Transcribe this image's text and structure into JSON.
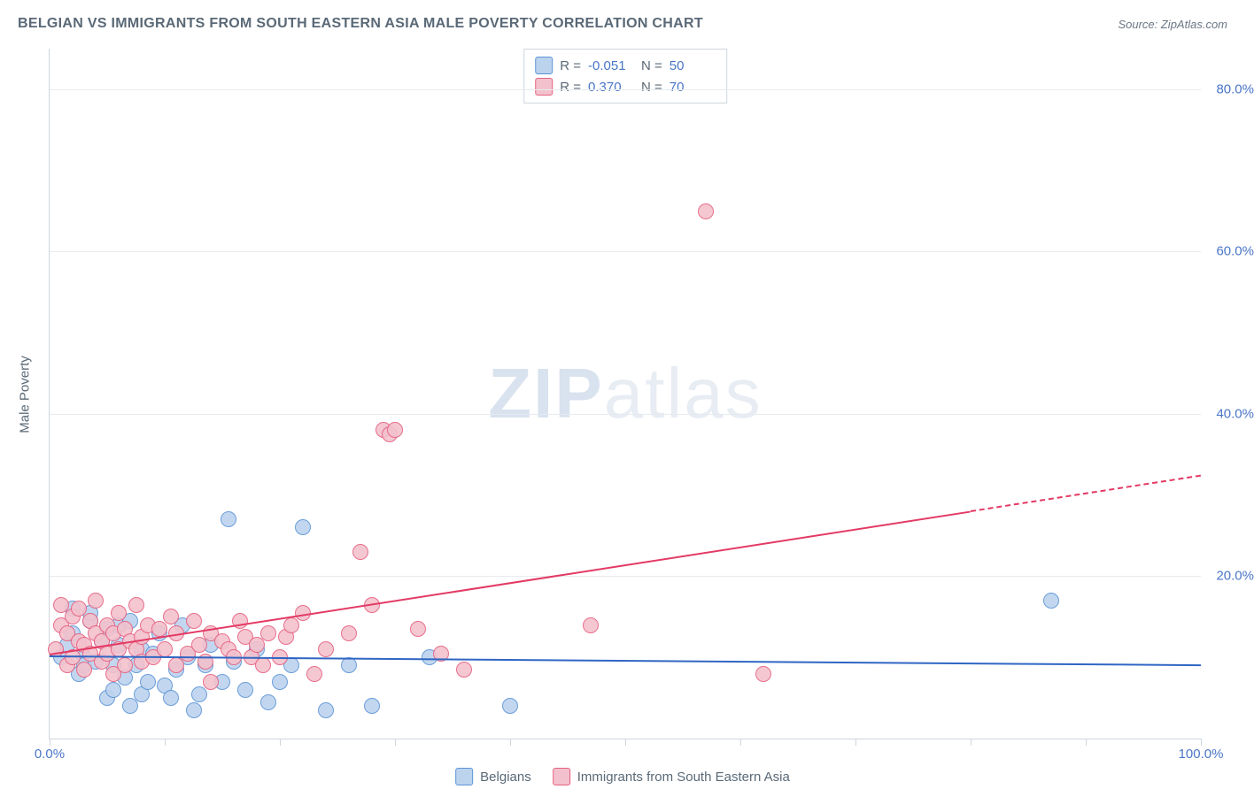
{
  "title": "BELGIAN VS IMMIGRANTS FROM SOUTH EASTERN ASIA MALE POVERTY CORRELATION CHART",
  "source_label": "Source: ZipAtlas.com",
  "y_axis_title": "Male Poverty",
  "watermark": {
    "part1": "ZIP",
    "part2": "atlas"
  },
  "chart": {
    "type": "scatter",
    "xlim": [
      0,
      100
    ],
    "ylim": [
      0,
      85
    ],
    "x_ticks": [
      0,
      10,
      20,
      30,
      40,
      50,
      60,
      70,
      80,
      90,
      100
    ],
    "x_tick_labels": {
      "0": "0.0%",
      "100": "100.0%"
    },
    "y_ticks": [
      20,
      40,
      60,
      80
    ],
    "y_tick_labels": {
      "20": "20.0%",
      "40": "40.0%",
      "60": "60.0%",
      "80": "80.0%"
    },
    "background_color": "#ffffff",
    "grid_color": "#e7ebef",
    "axis_color": "#cfd6dd",
    "tick_label_color": "#4a76c7",
    "axis_title_color": "#5a6977",
    "point_radius": 8,
    "point_stroke_width": 1.5,
    "point_fill_opacity": 0.35,
    "series": [
      {
        "key": "belgians",
        "label": "Belgians",
        "stroke": "#5b93d6",
        "fill": "#bcd3ee",
        "trend_color": "#2f66c4",
        "trend": {
          "x1": 0,
          "y1": 10.2,
          "x2": 100,
          "y2": 9.1,
          "dash_from_x": 100
        },
        "R_label": "R =",
        "R_value": "-0.051",
        "N_label": "N =",
        "N_value": "50",
        "points": [
          [
            1,
            10
          ],
          [
            1.5,
            11.5
          ],
          [
            2,
            16
          ],
          [
            2,
            13
          ],
          [
            2.5,
            8
          ],
          [
            3,
            10
          ],
          [
            3,
            9
          ],
          [
            3.5,
            14.5
          ],
          [
            3.5,
            15.5
          ],
          [
            4,
            9.5
          ],
          [
            4.5,
            12
          ],
          [
            5,
            13.5
          ],
          [
            5,
            5
          ],
          [
            5.5,
            9
          ],
          [
            5.5,
            6
          ],
          [
            6,
            14
          ],
          [
            6,
            11.5
          ],
          [
            6.5,
            7.5
          ],
          [
            7,
            14.5
          ],
          [
            7,
            4
          ],
          [
            7.5,
            9
          ],
          [
            8,
            11
          ],
          [
            8,
            5.5
          ],
          [
            8.5,
            7
          ],
          [
            9,
            10.5
          ],
          [
            9.5,
            13
          ],
          [
            10,
            6.5
          ],
          [
            10.5,
            5
          ],
          [
            11,
            8.5
          ],
          [
            11.5,
            14
          ],
          [
            12,
            10
          ],
          [
            12.5,
            3.5
          ],
          [
            13,
            5.5
          ],
          [
            13.5,
            9
          ],
          [
            14,
            11.5
          ],
          [
            15,
            7
          ],
          [
            15.5,
            27
          ],
          [
            16,
            9.5
          ],
          [
            17,
            6
          ],
          [
            18,
            11
          ],
          [
            19,
            4.5
          ],
          [
            20,
            7
          ],
          [
            21,
            9
          ],
          [
            22,
            26
          ],
          [
            24,
            3.5
          ],
          [
            26,
            9
          ],
          [
            28,
            4
          ],
          [
            33,
            10
          ],
          [
            40,
            4
          ],
          [
            87,
            17
          ]
        ]
      },
      {
        "key": "immigrants",
        "label": "Immigrants from South Eastern Asia",
        "stroke": "#e6607f",
        "fill": "#f3c1cd",
        "trend_color": "#e33a64",
        "trend": {
          "x1": 0,
          "y1": 10.5,
          "x2": 100,
          "y2": 32.5,
          "dash_from_x": 80
        },
        "R_label": "R =",
        "R_value": "0.370",
        "N_label": "N =",
        "N_value": "70",
        "points": [
          [
            0.5,
            11
          ],
          [
            1,
            14
          ],
          [
            1,
            16.5
          ],
          [
            1.5,
            9
          ],
          [
            1.5,
            13
          ],
          [
            2,
            10
          ],
          [
            2,
            15
          ],
          [
            2.5,
            12
          ],
          [
            2.5,
            16
          ],
          [
            3,
            11.5
          ],
          [
            3,
            8.5
          ],
          [
            3.5,
            14.5
          ],
          [
            3.5,
            10.5
          ],
          [
            4,
            13
          ],
          [
            4,
            17
          ],
          [
            4.5,
            9.5
          ],
          [
            4.5,
            12
          ],
          [
            5,
            10.5
          ],
          [
            5,
            14
          ],
          [
            5.5,
            13
          ],
          [
            5.5,
            8
          ],
          [
            6,
            11
          ],
          [
            6,
            15.5
          ],
          [
            6.5,
            9
          ],
          [
            6.5,
            13.5
          ],
          [
            7,
            12
          ],
          [
            7.5,
            11
          ],
          [
            7.5,
            16.5
          ],
          [
            8,
            12.5
          ],
          [
            8,
            9.5
          ],
          [
            8.5,
            14
          ],
          [
            9,
            10
          ],
          [
            9.5,
            13.5
          ],
          [
            10,
            11
          ],
          [
            10.5,
            15
          ],
          [
            11,
            9
          ],
          [
            11,
            13
          ],
          [
            12,
            10.5
          ],
          [
            12.5,
            14.5
          ],
          [
            13,
            11.5
          ],
          [
            13.5,
            9.5
          ],
          [
            14,
            13
          ],
          [
            14,
            7
          ],
          [
            15,
            12
          ],
          [
            15.5,
            11
          ],
          [
            16,
            10
          ],
          [
            16.5,
            14.5
          ],
          [
            17,
            12.5
          ],
          [
            17.5,
            10
          ],
          [
            18,
            11.5
          ],
          [
            18.5,
            9
          ],
          [
            19,
            13
          ],
          [
            20,
            10
          ],
          [
            20.5,
            12.5
          ],
          [
            21,
            14
          ],
          [
            22,
            15.5
          ],
          [
            23,
            8
          ],
          [
            24,
            11
          ],
          [
            26,
            13
          ],
          [
            27,
            23
          ],
          [
            28,
            16.5
          ],
          [
            29,
            38
          ],
          [
            29.5,
            37.5
          ],
          [
            30,
            38
          ],
          [
            32,
            13.5
          ],
          [
            34,
            10.5
          ],
          [
            36,
            8.5
          ],
          [
            47,
            14
          ],
          [
            57,
            65
          ],
          [
            62,
            8
          ]
        ]
      }
    ]
  },
  "legend_bottom": [
    {
      "series": "belgians"
    },
    {
      "series": "immigrants"
    }
  ]
}
